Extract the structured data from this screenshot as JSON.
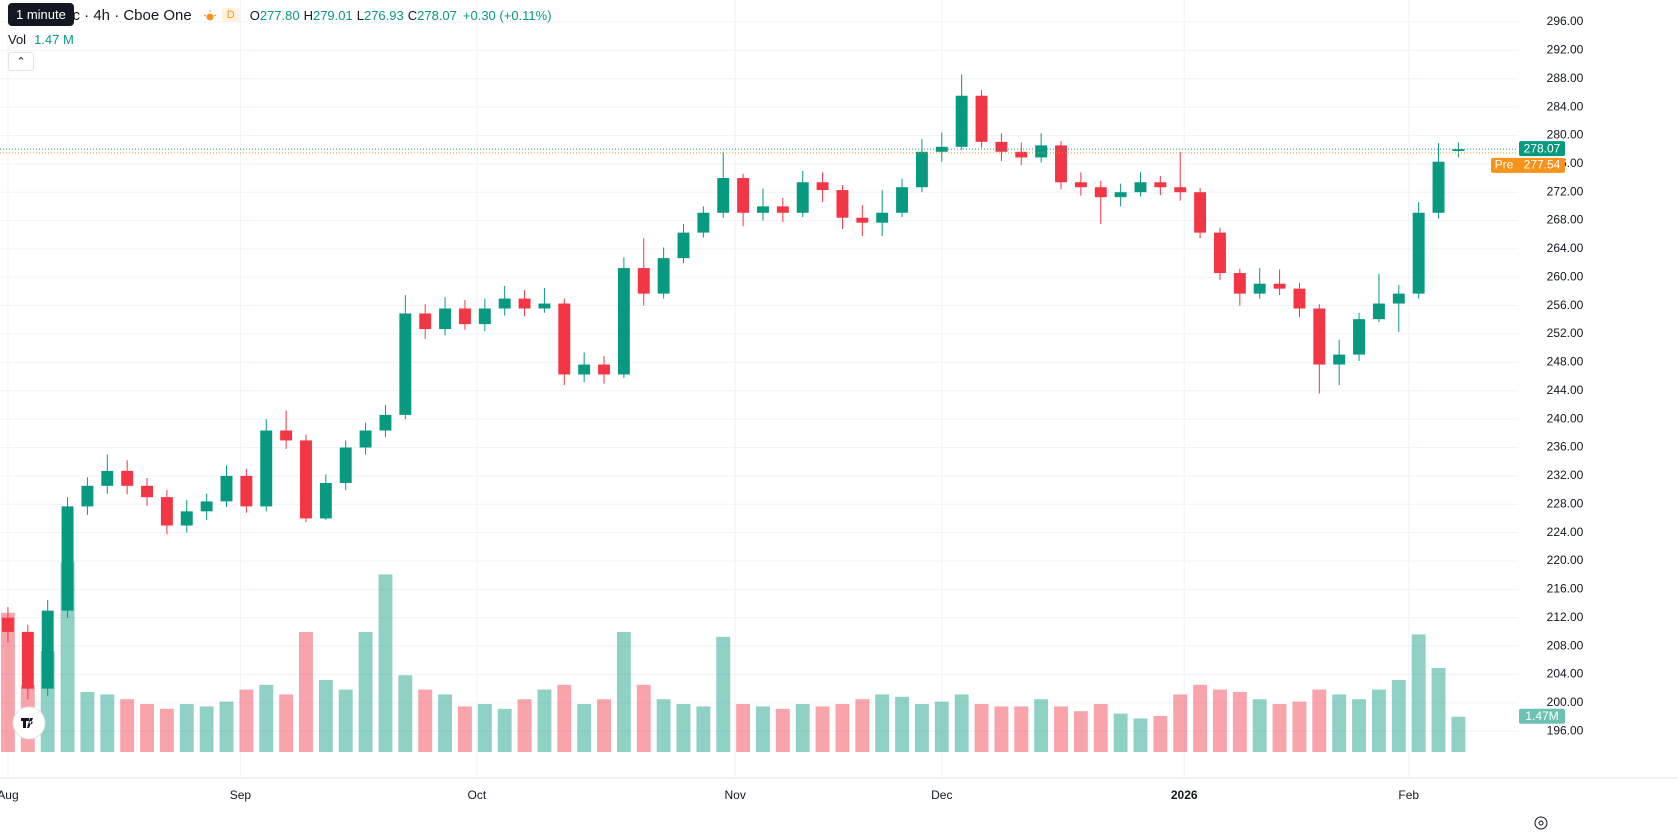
{
  "header": {
    "tooltip": "1 minute",
    "symbol": "Inc · 4h · Cboe One",
    "badge": "D",
    "open_label": "O",
    "open": "277.80",
    "high_label": "H",
    "high": "279.01",
    "low_label": "L",
    "low": "276.93",
    "close_label": "C",
    "close": "278.07",
    "change": "+0.30 (+0.11%)",
    "vol_label": "Vol",
    "vol_value": "1.47 M"
  },
  "chart_data": {
    "type": "candlestick",
    "up_color": "#089981",
    "down_color": "#f23645",
    "grid": true,
    "xlim": [
      -0.4,
      76
    ],
    "ylim": [
      189.4,
      299.1
    ],
    "volume_ylim": [
      0,
      8.5
    ],
    "xticks": [
      {
        "value": 0,
        "label": "Aug"
      },
      {
        "value": 11.7,
        "label": "Sep"
      },
      {
        "value": 23.6,
        "label": "Oct"
      },
      {
        "value": 36.6,
        "label": "Nov"
      },
      {
        "value": 47.0,
        "label": "Dec"
      },
      {
        "value": 59.2,
        "label": "2026"
      },
      {
        "value": 70.5,
        "label": "Feb"
      }
    ],
    "yticks": [
      {
        "value": 196,
        "label": "196.00"
      },
      {
        "value": 200,
        "label": "200.00"
      },
      {
        "value": 204,
        "label": "204.00"
      },
      {
        "value": 208,
        "label": "208.00"
      },
      {
        "value": 212,
        "label": "212.00"
      },
      {
        "value": 216,
        "label": "216.00"
      },
      {
        "value": 220,
        "label": "220.00"
      },
      {
        "value": 224,
        "label": "224.00"
      },
      {
        "value": 228,
        "label": "228.00"
      },
      {
        "value": 232,
        "label": "232.00"
      },
      {
        "value": 236,
        "label": "236.00"
      },
      {
        "value": 240,
        "label": "240.00"
      },
      {
        "value": 244,
        "label": "244.00"
      },
      {
        "value": 248,
        "label": "248.00"
      },
      {
        "value": 252,
        "label": "252.00"
      },
      {
        "value": 256,
        "label": "256.00"
      },
      {
        "value": 260,
        "label": "260.00"
      },
      {
        "value": 264,
        "label": "264.00"
      },
      {
        "value": 268,
        "label": "268.00"
      },
      {
        "value": 272,
        "label": "272.00"
      },
      {
        "value": 276,
        "label": "276.00"
      },
      {
        "value": 280,
        "label": "280.00"
      },
      {
        "value": 284,
        "label": "284.00"
      },
      {
        "value": 288,
        "label": "288.00"
      },
      {
        "value": 292,
        "label": "292.00"
      },
      {
        "value": 296,
        "label": "296.00"
      }
    ],
    "open": [
      212,
      210,
      202,
      213,
      227.7,
      230.6,
      232.7,
      230.6,
      229,
      225,
      227,
      228.4,
      232,
      227.7,
      238.4,
      237,
      226,
      231,
      236,
      238.4,
      240.6,
      254.9,
      252.7,
      255.6,
      253.4,
      255.6,
      257,
      255.6,
      256.3,
      246.3,
      247.7,
      246.3,
      261.3,
      257.7,
      262.7,
      266.3,
      269.1,
      274,
      269.1,
      270,
      269.1,
      273.4,
      272.3,
      268.4,
      267.7,
      269.1,
      272.7,
      277.7,
      278.4,
      285.6,
      279.1,
      277.7,
      276.9,
      278.6,
      273.4,
      272.7,
      271.3,
      272,
      273.4,
      272.7,
      272,
      266.3,
      260.6,
      257.7,
      259.1,
      258.4,
      255.6,
      247.7,
      249.1,
      254.1,
      256.3,
      257.7,
      269.1,
      277.8
    ],
    "high": [
      213.5,
      211,
      214.5,
      229,
      231.8,
      235,
      234.2,
      231.7,
      230,
      228.6,
      229.5,
      233.5,
      233,
      240,
      241.2,
      237.8,
      232.2,
      237,
      239.5,
      242,
      257.5,
      256.2,
      257.2,
      256.8,
      257,
      258.8,
      258.2,
      258.5,
      257,
      249.4,
      248.9,
      262.8,
      265.5,
      264.2,
      267.5,
      270,
      277.7,
      274.6,
      272.5,
      271.2,
      275,
      274.8,
      273,
      270.2,
      272.3,
      273.9,
      279.5,
      280.4,
      288.6,
      286.4,
      280.3,
      279,
      280.3,
      279.2,
      274.8,
      273.6,
      273.2,
      274.8,
      274.3,
      277.7,
      272.6,
      267,
      261.2,
      261.3,
      261.1,
      259.2,
      256.2,
      251.2,
      255,
      260.5,
      258.9,
      270.6,
      278.9,
      279.01
    ],
    "low": [
      208.5,
      200.5,
      201,
      212,
      226.5,
      229.5,
      229.4,
      227.8,
      223.8,
      224,
      225.8,
      227.6,
      226.8,
      227,
      235.8,
      225.5,
      225.8,
      230,
      235,
      237.5,
      240,
      251.3,
      251.8,
      252.6,
      252.4,
      254.6,
      254.5,
      255,
      244.8,
      245.2,
      245,
      245.8,
      256,
      257,
      262,
      265.6,
      268.4,
      267.2,
      268,
      267.8,
      268.5,
      270.6,
      266.8,
      265.8,
      265.8,
      268.5,
      272,
      276.3,
      278,
      278.3,
      276.4,
      275.8,
      276.2,
      272.4,
      271.5,
      267.5,
      270,
      271.4,
      271.6,
      270.8,
      265.5,
      259.6,
      256,
      257,
      257.5,
      254.4,
      243.6,
      244.8,
      248.2,
      253.7,
      252.3,
      257,
      268.3,
      276.93
    ],
    "close": [
      210,
      202,
      213,
      227.7,
      230.6,
      232.7,
      230.6,
      229,
      225,
      227,
      228.4,
      232,
      227.7,
      238.4,
      237,
      226,
      231,
      236,
      238.4,
      240.6,
      254.9,
      252.7,
      255.6,
      253.4,
      255.6,
      257,
      255.6,
      256.3,
      246.3,
      247.7,
      246.3,
      261.3,
      257.7,
      262.7,
      266.3,
      269.1,
      274,
      269.1,
      270,
      269.1,
      273.4,
      272.3,
      268.4,
      267.7,
      269.1,
      272.7,
      277.7,
      278.4,
      285.6,
      279.1,
      277.7,
      276.9,
      278.6,
      273.4,
      272.7,
      271.3,
      272,
      273.4,
      272.7,
      272,
      266.3,
      260.6,
      257.7,
      259.1,
      258.4,
      255.6,
      247.7,
      249.1,
      254.1,
      256.3,
      257.7,
      269.1,
      276.3,
      278.07
    ],
    "volume": [
      5.8,
      2.8,
      4.2,
      7.9,
      2.5,
      2.4,
      2.2,
      2.0,
      1.8,
      2.0,
      1.9,
      2.1,
      2.6,
      2.8,
      2.4,
      5.0,
      3.0,
      2.6,
      5.0,
      7.4,
      3.2,
      2.6,
      2.4,
      1.9,
      2.0,
      1.8,
      2.2,
      2.6,
      2.8,
      2.0,
      2.2,
      5.0,
      2.8,
      2.2,
      2.0,
      1.9,
      4.8,
      2.0,
      1.9,
      1.8,
      2.0,
      1.9,
      2.0,
      2.2,
      2.4,
      2.3,
      2.0,
      2.1,
      2.4,
      2.0,
      1.9,
      1.9,
      2.2,
      1.9,
      1.7,
      2.0,
      1.6,
      1.4,
      1.5,
      2.4,
      2.8,
      2.6,
      2.5,
      2.2,
      2.0,
      2.1,
      2.6,
      2.4,
      2.2,
      2.6,
      3.0,
      4.9,
      3.5,
      1.47
    ],
    "volume_badge": "1.47M",
    "last_price": {
      "value": 278.07,
      "color": "#089981"
    },
    "pre_price": {
      "label": "Pre",
      "value": 277.54,
      "color": "#f7931a"
    }
  }
}
